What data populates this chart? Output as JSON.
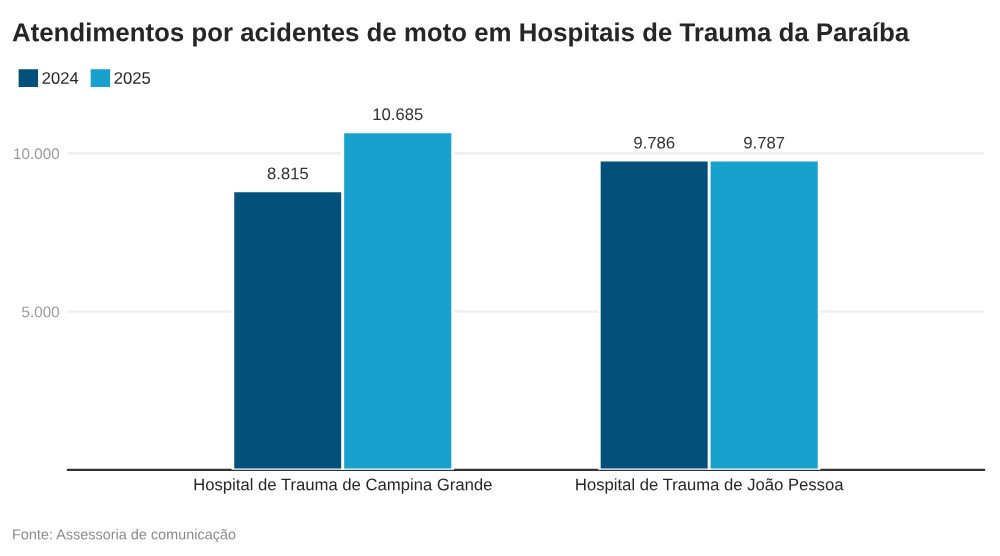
{
  "chart_data": {
    "type": "bar",
    "title": "Atendimentos por acidentes de moto em Hospitais de Trauma da Paraíba",
    "categories": [
      "Hospital de Trauma de Campina Grande",
      "Hospital de Trauma de João Pessoa"
    ],
    "series": [
      {
        "name": "2024",
        "color": "#03517a",
        "values": [
          8815,
          9786
        ],
        "value_labels": [
          "8.815",
          "9.786"
        ]
      },
      {
        "name": "2025",
        "color": "#18a1cd",
        "values": [
          10685,
          9787
        ],
        "value_labels": [
          "10.685",
          "9.787"
        ]
      }
    ],
    "ylim": [
      0,
      10685
    ],
    "yticks": [
      {
        "value": 5000,
        "label": "5.000"
      },
      {
        "value": 10000,
        "label": "10.000"
      }
    ],
    "grid": "y",
    "legend": "top left",
    "annotations": [
      "Fonte: Assessoria de comunicação"
    ]
  }
}
